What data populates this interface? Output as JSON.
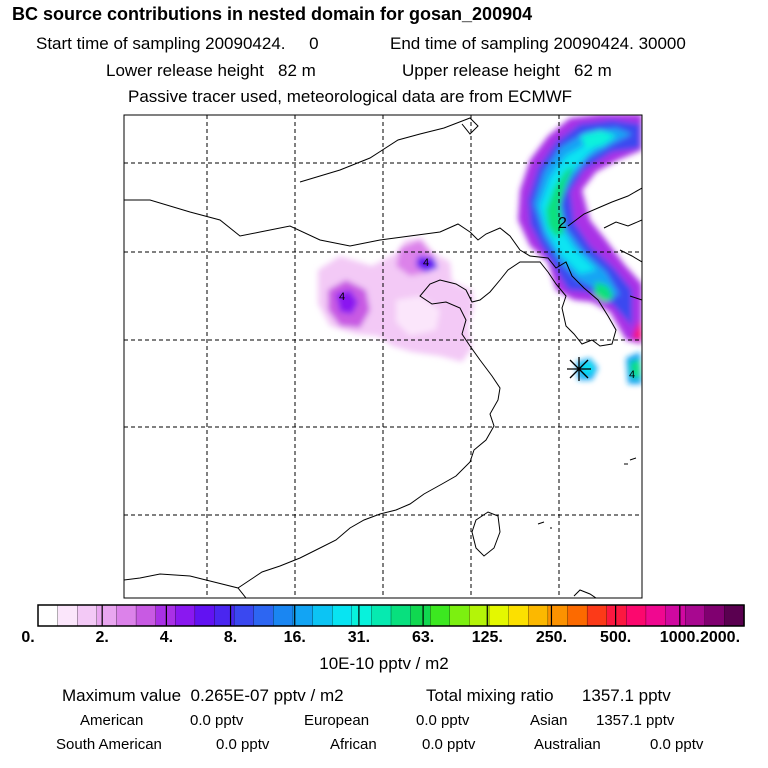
{
  "header": {
    "title": "BC  source contributions in nested domain for gosan_200904",
    "start_label": "Start time of sampling",
    "start_value": "20090424.     0",
    "end_label": "End time of sampling",
    "end_value": "20090424. 30000",
    "lower_label": "Lower release height",
    "lower_value": "82 m",
    "upper_label": "Upper release height",
    "upper_value": "62 m",
    "tracer_note": "Passive tracer used, meteorological data are from ECMWF"
  },
  "map": {
    "contour_label": "2",
    "receptor_marker": "asterisk-icon"
  },
  "colorbar": {
    "tick_labels": [
      "0.",
      "2.",
      "4.",
      "8.",
      "16.",
      "31.",
      "63.",
      "125.",
      "250.",
      "500.",
      "1000.",
      "2000."
    ],
    "colors": [
      "#ffffff",
      "#fbe6fb",
      "#f3c9f6",
      "#e9a6f0",
      "#dc82ea",
      "#c85ae3",
      "#a930e6",
      "#8a18f0",
      "#6212f2",
      "#4a26f0",
      "#3a48f0",
      "#2d66f2",
      "#1a86f2",
      "#12a4f4",
      "#0cc4f4",
      "#08e4f2",
      "#08f2dc",
      "#06eab0",
      "#08e07e",
      "#10d850",
      "#3ce820",
      "#7cf010",
      "#b4f408",
      "#e4f800",
      "#fce000",
      "#fcb800",
      "#fc9200",
      "#fc6a00",
      "#fc3a18",
      "#fc1840",
      "#fc086e",
      "#f00890",
      "#d008a0",
      "#a80890",
      "#800070",
      "#5a0050"
    ]
  },
  "unit_label": "10E-10 pptv / m2",
  "stats": {
    "max_label": "Maximum value",
    "max_value": "0.265E-07 pptv / m2",
    "total_label": "Total mixing ratio",
    "total_value": "1357.1 pptv",
    "regions": [
      {
        "name": "American",
        "value": "0.0 pptv"
      },
      {
        "name": "European",
        "value": "0.0 pptv"
      },
      {
        "name": "Asian",
        "value": "1357.1 pptv"
      },
      {
        "name": "South American",
        "value": "0.0 pptv"
      },
      {
        "name": "African",
        "value": "0.0 pptv"
      },
      {
        "name": "Australian",
        "value": "0.0 pptv"
      }
    ]
  }
}
